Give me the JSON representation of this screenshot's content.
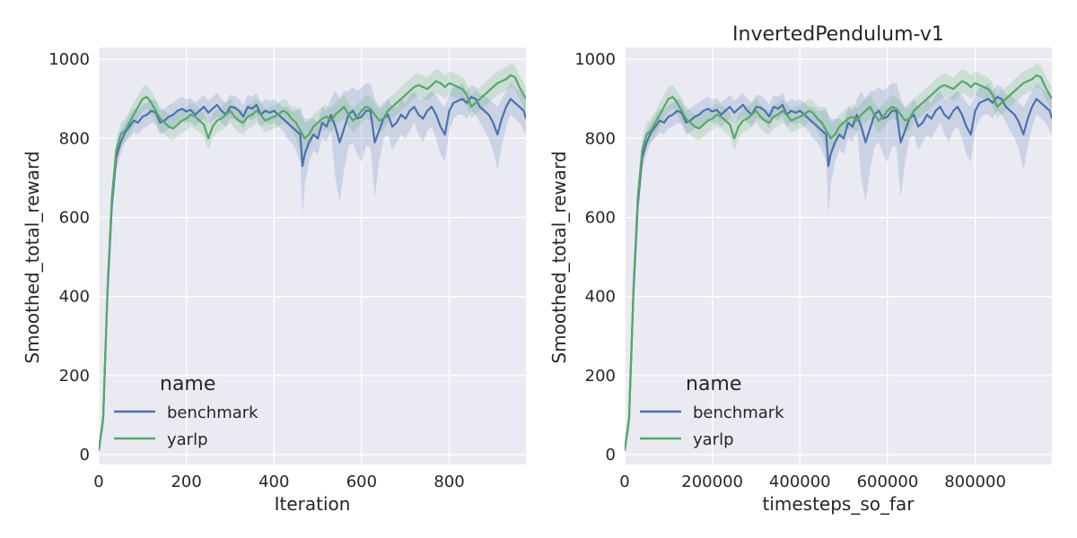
{
  "figure": {
    "colors": {
      "background": "#ffffff",
      "plot_bg": "#eaeaf2",
      "grid": "#ffffff",
      "benchmark": "#4c72b0",
      "yarlp": "#55a868"
    }
  },
  "chart_data": [
    {
      "type": "line",
      "title": "",
      "xlabel": "Iteration",
      "ylabel": "Smoothed_total_reward",
      "xlim": [
        0,
        975
      ],
      "ylim": [
        -25,
        1030
      ],
      "xticks": [
        0,
        200,
        400,
        600,
        800
      ],
      "xtick_labels": [
        "0",
        "200",
        "400",
        "600",
        "800"
      ],
      "yticks": [
        0,
        200,
        400,
        600,
        800,
        1000
      ],
      "ytick_labels": [
        "0",
        "200",
        "400",
        "600",
        "800",
        "1000"
      ],
      "grid": true,
      "legend": {
        "title": "name",
        "placement": "lower-left",
        "entries": [
          "benchmark",
          "yarlp"
        ]
      },
      "series": [
        {
          "name": "benchmark",
          "color": "#4c72b0",
          "x": [
            0,
            10,
            20,
            30,
            40,
            50,
            60,
            70,
            80,
            90,
            100,
            110,
            120,
            130,
            140,
            150,
            160,
            170,
            180,
            190,
            200,
            210,
            220,
            230,
            240,
            250,
            260,
            270,
            280,
            290,
            300,
            310,
            320,
            330,
            340,
            350,
            360,
            370,
            380,
            390,
            400,
            410,
            420,
            430,
            440,
            450,
            460,
            465,
            470,
            480,
            490,
            500,
            510,
            520,
            530,
            540,
            550,
            560,
            570,
            580,
            590,
            600,
            610,
            620,
            630,
            640,
            650,
            660,
            670,
            680,
            690,
            700,
            710,
            720,
            730,
            740,
            750,
            760,
            770,
            780,
            790,
            800,
            810,
            820,
            830,
            840,
            850,
            860,
            870,
            880,
            890,
            900,
            910,
            920,
            930,
            940,
            950,
            960,
            970,
            975
          ],
          "y": [
            10,
            90,
            410,
            630,
            750,
            790,
            815,
            830,
            845,
            840,
            855,
            860,
            870,
            865,
            840,
            845,
            855,
            860,
            870,
            875,
            868,
            872,
            860,
            870,
            880,
            865,
            875,
            885,
            870,
            860,
            880,
            878,
            870,
            855,
            880,
            875,
            885,
            860,
            870,
            865,
            870,
            860,
            850,
            840,
            830,
            820,
            810,
            730,
            760,
            790,
            810,
            800,
            840,
            830,
            860,
            830,
            790,
            825,
            860,
            870,
            850,
            855,
            870,
            870,
            790,
            820,
            850,
            860,
            830,
            840,
            860,
            850,
            870,
            880,
            860,
            850,
            870,
            880,
            860,
            830,
            810,
            870,
            890,
            895,
            900,
            890,
            905,
            900,
            880,
            870,
            860,
            840,
            810,
            850,
            880,
            900,
            890,
            880,
            870,
            850
          ],
          "lower": [
            10,
            60,
            370,
            600,
            720,
            760,
            790,
            800,
            815,
            810,
            825,
            830,
            840,
            835,
            810,
            815,
            825,
            830,
            840,
            845,
            838,
            842,
            830,
            840,
            850,
            835,
            845,
            855,
            840,
            830,
            850,
            848,
            840,
            825,
            850,
            845,
            855,
            830,
            840,
            835,
            840,
            830,
            820,
            800,
            790,
            770,
            740,
            610,
            680,
            740,
            770,
            760,
            800,
            790,
            820,
            700,
            640,
            720,
            780,
            790,
            760,
            740,
            780,
            780,
            650,
            740,
            800,
            810,
            770,
            790,
            810,
            800,
            820,
            840,
            810,
            790,
            820,
            830,
            800,
            760,
            740,
            820,
            850,
            860,
            860,
            850,
            870,
            860,
            840,
            820,
            800,
            770,
            720,
            780,
            830,
            860,
            850,
            840,
            820,
            810
          ],
          "upper": [
            10,
            120,
            450,
            660,
            780,
            820,
            840,
            860,
            875,
            870,
            885,
            890,
            900,
            895,
            870,
            875,
            885,
            890,
            900,
            905,
            898,
            902,
            890,
            900,
            910,
            895,
            905,
            915,
            900,
            890,
            910,
            908,
            900,
            885,
            910,
            905,
            915,
            890,
            900,
            895,
            900,
            890,
            880,
            880,
            870,
            870,
            880,
            860,
            850,
            850,
            850,
            840,
            880,
            870,
            900,
            920,
            900,
            920,
            920,
            930,
            920,
            930,
            940,
            940,
            900,
            880,
            890,
            900,
            880,
            880,
            900,
            890,
            910,
            920,
            900,
            900,
            910,
            920,
            910,
            890,
            880,
            910,
            930,
            930,
            940,
            920,
            935,
            930,
            910,
            910,
            900,
            890,
            880,
            900,
            920,
            940,
            930,
            920,
            910,
            890
          ]
        },
        {
          "name": "yarlp",
          "color": "#55a868",
          "x": [
            0,
            10,
            20,
            30,
            40,
            50,
            60,
            70,
            80,
            90,
            100,
            110,
            120,
            130,
            140,
            150,
            160,
            170,
            180,
            190,
            200,
            210,
            220,
            230,
            240,
            250,
            260,
            270,
            280,
            290,
            300,
            310,
            320,
            330,
            340,
            350,
            360,
            370,
            380,
            390,
            400,
            410,
            420,
            430,
            440,
            450,
            460,
            470,
            480,
            490,
            500,
            510,
            520,
            530,
            540,
            550,
            560,
            570,
            580,
            590,
            600,
            610,
            620,
            630,
            640,
            650,
            660,
            670,
            680,
            690,
            700,
            710,
            720,
            730,
            740,
            750,
            760,
            770,
            780,
            790,
            800,
            810,
            820,
            830,
            840,
            850,
            860,
            870,
            880,
            890,
            900,
            910,
            920,
            930,
            940,
            950,
            960,
            970,
            975
          ],
          "y": [
            10,
            90,
            420,
            650,
            770,
            810,
            820,
            840,
            860,
            880,
            900,
            905,
            890,
            870,
            850,
            840,
            830,
            825,
            835,
            845,
            850,
            860,
            855,
            845,
            835,
            800,
            830,
            845,
            850,
            860,
            870,
            855,
            845,
            840,
            855,
            860,
            870,
            860,
            845,
            850,
            855,
            860,
            870,
            865,
            850,
            840,
            820,
            800,
            810,
            830,
            840,
            850,
            855,
            845,
            860,
            870,
            880,
            860,
            845,
            855,
            870,
            880,
            875,
            860,
            845,
            850,
            870,
            880,
            890,
            900,
            910,
            920,
            930,
            935,
            930,
            925,
            935,
            945,
            940,
            930,
            940,
            935,
            930,
            925,
            910,
            880,
            890,
            900,
            910,
            920,
            930,
            940,
            945,
            950,
            960,
            955,
            930,
            910,
            900
          ],
          "lower": [
            10,
            70,
            390,
            620,
            740,
            780,
            790,
            810,
            830,
            850,
            870,
            875,
            860,
            840,
            820,
            810,
            800,
            795,
            805,
            815,
            820,
            830,
            825,
            815,
            805,
            770,
            800,
            815,
            820,
            830,
            840,
            825,
            815,
            810,
            825,
            830,
            840,
            830,
            815,
            820,
            825,
            830,
            840,
            835,
            820,
            800,
            770,
            760,
            775,
            800,
            810,
            820,
            825,
            815,
            830,
            840,
            850,
            830,
            815,
            825,
            840,
            850,
            845,
            830,
            815,
            820,
            840,
            850,
            860,
            870,
            880,
            890,
            900,
            905,
            900,
            895,
            905,
            915,
            910,
            900,
            910,
            905,
            900,
            895,
            880,
            850,
            860,
            870,
            880,
            890,
            900,
            910,
            915,
            920,
            930,
            925,
            900,
            880,
            870
          ],
          "upper": [
            10,
            110,
            450,
            680,
            800,
            840,
            850,
            870,
            890,
            910,
            930,
            935,
            920,
            900,
            880,
            870,
            860,
            855,
            865,
            875,
            880,
            890,
            885,
            875,
            865,
            830,
            860,
            875,
            880,
            890,
            900,
            885,
            875,
            870,
            885,
            890,
            900,
            890,
            875,
            880,
            885,
            890,
            900,
            895,
            880,
            880,
            870,
            840,
            845,
            860,
            870,
            880,
            885,
            875,
            890,
            900,
            910,
            890,
            875,
            885,
            900,
            910,
            905,
            890,
            875,
            880,
            900,
            910,
            920,
            930,
            940,
            950,
            960,
            965,
            960,
            955,
            965,
            975,
            970,
            960,
            970,
            965,
            960,
            955,
            940,
            910,
            920,
            930,
            940,
            950,
            960,
            970,
            975,
            980,
            990,
            985,
            960,
            940,
            930
          ]
        }
      ]
    },
    {
      "type": "line",
      "title": "InvertedPendulum-v1",
      "xlabel": "timesteps_so_far",
      "ylabel": "Smoothed_total_reward",
      "xlim": [
        0,
        975000
      ],
      "ylim": [
        -25,
        1030
      ],
      "xticks": [
        0,
        200000,
        400000,
        600000,
        800000
      ],
      "xtick_labels": [
        "0",
        "200000",
        "400000",
        "600000",
        "800000"
      ],
      "yticks": [
        0,
        200,
        400,
        600,
        800,
        1000
      ],
      "ytick_labels": [
        "0",
        "200",
        "400",
        "600",
        "800",
        "1000"
      ],
      "grid": true,
      "legend": {
        "title": "name",
        "placement": "lower-left",
        "entries": [
          "benchmark",
          "yarlp"
        ]
      },
      "series_same_as_left_scaled_x": 1000
    }
  ]
}
